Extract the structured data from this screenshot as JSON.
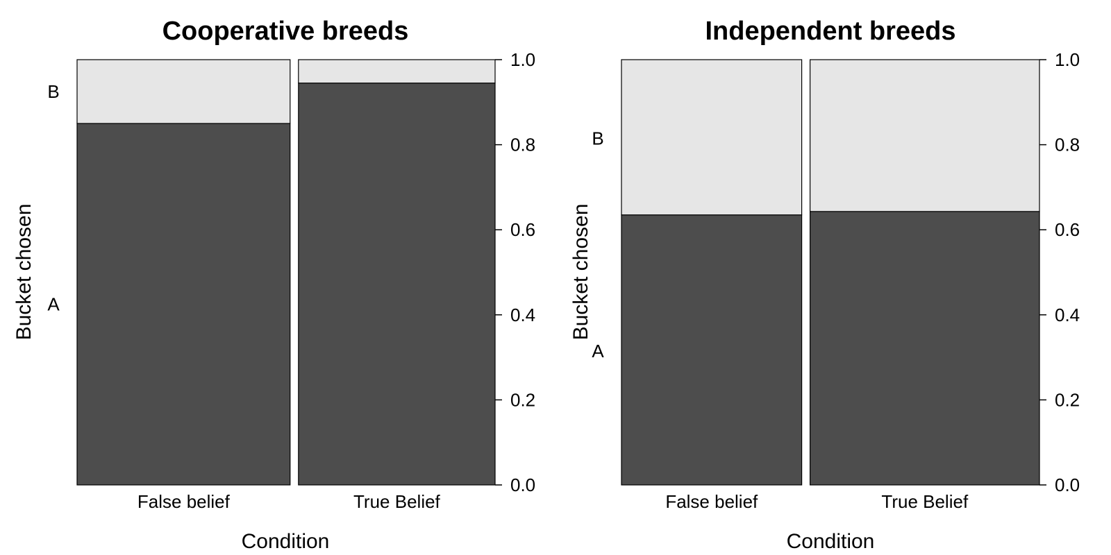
{
  "chart_data": [
    {
      "type": "bar",
      "subtype": "mosaic",
      "title": "Cooperative breeds",
      "xlabel": "Condition",
      "ylabel": "Bucket chosen",
      "categories": [
        "False belief",
        "True Belief"
      ],
      "widths": [
        0.52,
        0.48
      ],
      "series": [
        {
          "name": "A",
          "values": [
            0.85,
            0.945
          ]
        },
        {
          "name": "B",
          "values": [
            0.15,
            0.055
          ]
        }
      ],
      "level_label_positions": [
        0.425,
        0.925
      ],
      "ylim": [
        0,
        1
      ],
      "yticks": [
        "0.0",
        "0.2",
        "0.4",
        "0.6",
        "0.8",
        "1.0"
      ],
      "ytick_values": [
        0,
        0.2,
        0.4,
        0.6,
        0.8,
        1.0
      ],
      "y_axis_side": "right",
      "colors": {
        "A": "#4d4d4d",
        "B": "#e6e6e6"
      },
      "grid": false
    },
    {
      "type": "bar",
      "subtype": "mosaic",
      "title": "Independent breeds",
      "xlabel": "Condition",
      "ylabel": "Bucket chosen",
      "categories": [
        "False belief",
        "True Belief"
      ],
      "widths": [
        0.44,
        0.56
      ],
      "series": [
        {
          "name": "A",
          "values": [
            0.635,
            0.643
          ]
        },
        {
          "name": "B",
          "values": [
            0.365,
            0.357
          ]
        }
      ],
      "level_label_positions": [
        0.315,
        0.815
      ],
      "ylim": [
        0,
        1
      ],
      "yticks": [
        "0.0",
        "0.2",
        "0.4",
        "0.6",
        "0.8",
        "1.0"
      ],
      "ytick_values": [
        0,
        0.2,
        0.4,
        0.6,
        0.8,
        1.0
      ],
      "y_axis_side": "right",
      "colors": {
        "A": "#4d4d4d",
        "B": "#e6e6e6"
      },
      "grid": false
    }
  ]
}
